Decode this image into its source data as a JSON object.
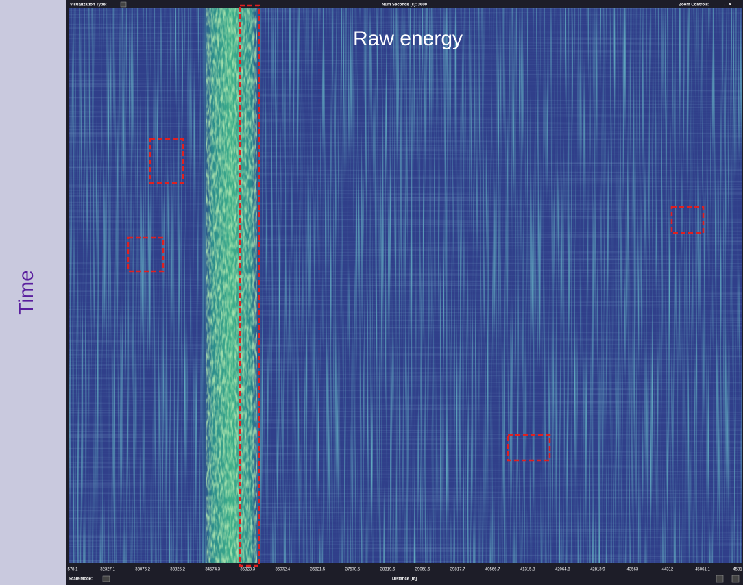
{
  "y_axis_label": "Time",
  "toolbar": {
    "visualization_type": "Visualization Type:",
    "num_seconds": "Num Seconds [s]: 3600",
    "zoom_controls": "Zoom Controls:"
  },
  "overlay_title": "Raw energy",
  "x_axis": {
    "ticks": [
      "578.1",
      "32327.1",
      "33076.2",
      "33825.2",
      "34574.3",
      "35323.3",
      "36072.4",
      "36821.5",
      "37570.5",
      "38319.6",
      "39068.6",
      "39817.7",
      "40566.7",
      "41315.8",
      "42064.8",
      "42813.9",
      "43563",
      "44312",
      "45061.1",
      "4581"
    ],
    "label": "Distance [m]"
  },
  "footer": {
    "scale_mode": "Scale Mode:"
  }
}
